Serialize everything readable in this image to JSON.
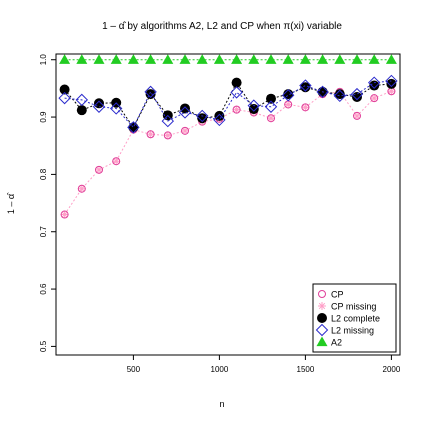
{
  "chart_data": {
    "type": "scatter",
    "title": "1 – α̂ by algorithms A2, L2 and CP when π(xi) variable",
    "xlabel": "n",
    "ylabel": "1 – α̂",
    "xlim": [
      50,
      2050
    ],
    "ylim": [
      0.485,
      1.01
    ],
    "xticks": [
      500,
      1000,
      1500,
      2000
    ],
    "yticks": [
      0.5,
      0.6,
      0.7,
      0.8,
      0.9,
      1.0
    ],
    "ytick_labels": [
      "0.5",
      "0.6",
      "0.7",
      "0.8",
      "0.9",
      "1.0"
    ],
    "grid": false,
    "legend_position": "bottom-right",
    "x": [
      100,
      200,
      300,
      400,
      500,
      600,
      700,
      800,
      900,
      1000,
      1100,
      1200,
      1300,
      1400,
      1500,
      1600,
      1700,
      1800,
      1900,
      2000
    ],
    "series": [
      {
        "name": "CP",
        "marker": "open-circle",
        "color": "#e0409a",
        "line": false,
        "values": [
          0.73,
          0.775,
          0.808,
          0.823,
          0.878,
          0.87,
          0.868,
          0.876,
          0.892,
          0.897,
          0.913,
          0.908,
          0.898,
          0.922,
          0.917,
          0.94,
          0.944,
          0.902,
          0.933,
          0.945
        ]
      },
      {
        "name": "CP missing",
        "marker": "asterisk",
        "color": "#ff9ec7",
        "line": true,
        "values": [
          0.73,
          0.775,
          0.808,
          0.823,
          0.878,
          0.87,
          0.868,
          0.876,
          0.892,
          0.897,
          0.913,
          0.908,
          0.898,
          0.922,
          0.917,
          0.94,
          0.944,
          0.902,
          0.933,
          0.945
        ]
      },
      {
        "name": "L2 complete",
        "marker": "filled-circle",
        "color": "#000000",
        "line": true,
        "values": [
          0.948,
          0.912,
          0.924,
          0.925,
          0.882,
          0.94,
          0.903,
          0.915,
          0.898,
          0.902,
          0.96,
          0.914,
          0.932,
          0.94,
          0.952,
          0.944,
          0.94,
          0.935,
          0.955,
          0.958
        ]
      },
      {
        "name": "L2 missing",
        "marker": "open-diamond",
        "color": "#2a2acc",
        "line": true,
        "values": [
          0.933,
          0.93,
          0.918,
          0.915,
          0.882,
          0.944,
          0.893,
          0.908,
          0.902,
          0.895,
          0.943,
          0.92,
          0.918,
          0.938,
          0.955,
          0.944,
          0.937,
          0.94,
          0.96,
          0.963
        ]
      },
      {
        "name": "A2",
        "marker": "filled-triangle",
        "color": "#22cc22",
        "line": true,
        "values": [
          1.0,
          1.0,
          1.0,
          1.0,
          1.0,
          1.0,
          1.0,
          1.0,
          1.0,
          1.0,
          1.0,
          1.0,
          1.0,
          1.0,
          1.0,
          1.0,
          1.0,
          1.0,
          1.0,
          1.0
        ]
      }
    ]
  }
}
